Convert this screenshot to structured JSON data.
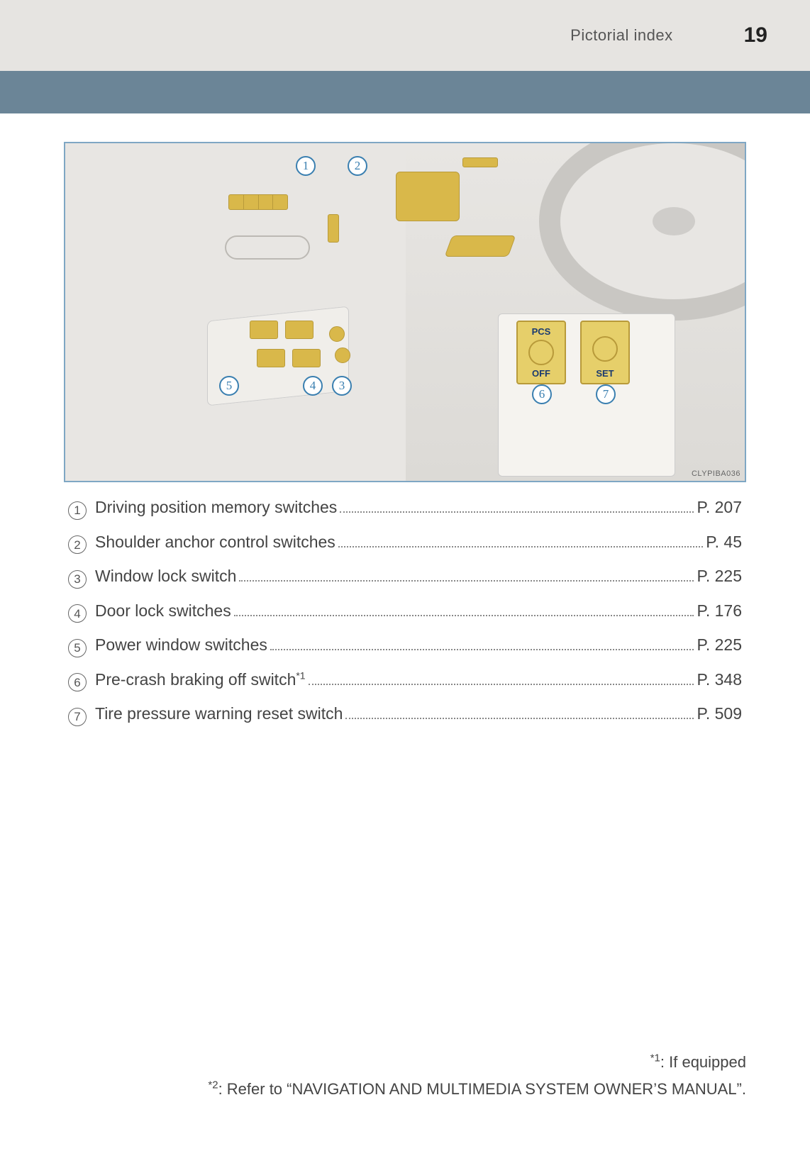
{
  "header": {
    "section_title": "Pictorial index",
    "page_number": "19"
  },
  "palette": {
    "header_bg": "#e6e4e1",
    "band_bg": "#6b8597",
    "callout_blue": "#3a7fb0",
    "highlight_yellow": "#d9b84a",
    "highlight_border": "#b89a3a",
    "text": "#444444"
  },
  "illustration": {
    "code": "CLYPIBA036",
    "callouts": [
      "1",
      "2",
      "3",
      "4",
      "5",
      "6",
      "7"
    ],
    "pcs_label_top": "PCS",
    "pcs_label_bottom": "OFF",
    "set_label": "SET"
  },
  "items": [
    {
      "n": "1",
      "label": "Driving position memory switches",
      "page": "P. 207",
      "sup": ""
    },
    {
      "n": "2",
      "label": "Shoulder anchor control switches",
      "page": "P. 45",
      "sup": ""
    },
    {
      "n": "3",
      "label": "Window lock switch",
      "page": "P. 225",
      "sup": ""
    },
    {
      "n": "4",
      "label": "Door lock switches",
      "page": "P. 176",
      "sup": ""
    },
    {
      "n": "5",
      "label": "Power window switches",
      "page": "P. 225",
      "sup": ""
    },
    {
      "n": "6",
      "label": "Pre-crash braking off switch",
      "page": "P. 348",
      "sup": "*1"
    },
    {
      "n": "7",
      "label": "Tire pressure warning reset switch",
      "page": "P. 509",
      "sup": ""
    }
  ],
  "footnotes": {
    "f1_mark": "*1",
    "f1_text": ": If equipped",
    "f2_mark": "*2",
    "f2_text": ": Refer to “NAVIGATION AND MULTIMEDIA SYSTEM OWNER’S MANUAL”."
  }
}
